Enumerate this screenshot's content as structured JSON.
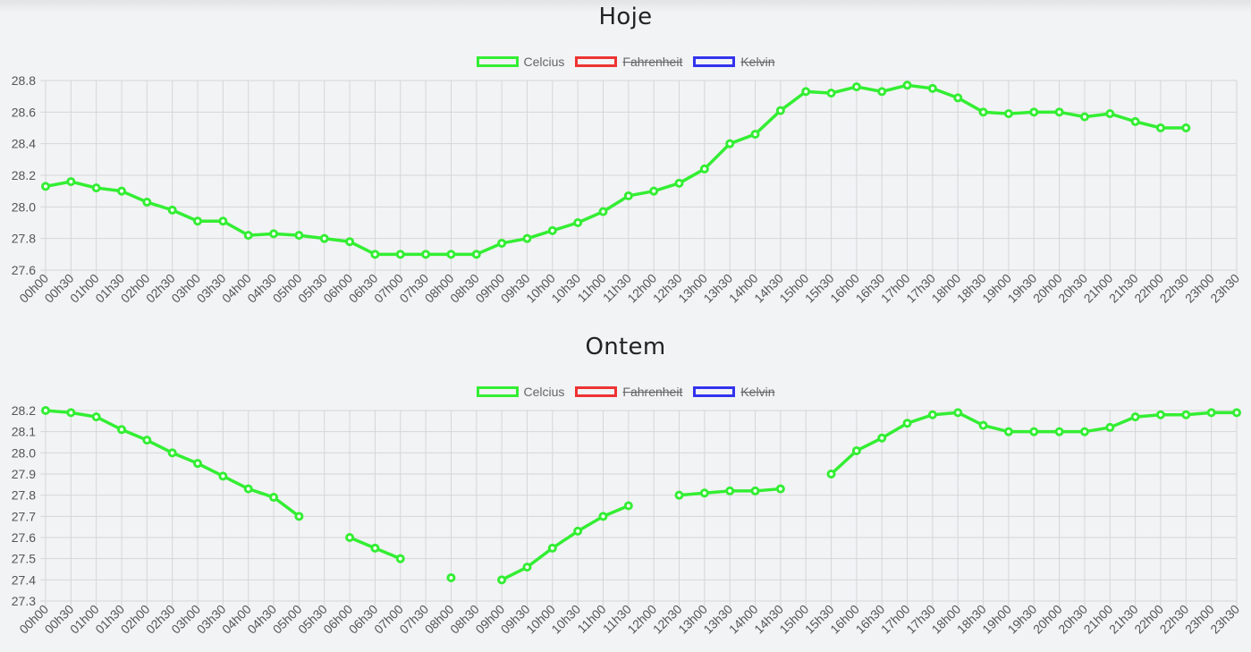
{
  "chart_data": [
    {
      "type": "line",
      "title": "Hoje",
      "legend": [
        {
          "name": "Celcius",
          "color": "#33ee33",
          "hidden": false
        },
        {
          "name": "Fahrenheit",
          "color": "#ee3333",
          "hidden": true
        },
        {
          "name": "Kelvin",
          "color": "#3333ee",
          "hidden": true
        }
      ],
      "categories": [
        "00h00",
        "00h30",
        "01h00",
        "01h30",
        "02h00",
        "02h30",
        "03h00",
        "03h30",
        "04h00",
        "04h30",
        "05h00",
        "05h30",
        "06h00",
        "06h30",
        "07h00",
        "07h30",
        "08h00",
        "08h30",
        "09h00",
        "09h30",
        "10h00",
        "10h30",
        "11h00",
        "11h30",
        "12h00",
        "12h30",
        "13h00",
        "13h30",
        "14h00",
        "14h30",
        "15h00",
        "15h30",
        "16h00",
        "16h30",
        "17h00",
        "17h30",
        "18h00",
        "18h30",
        "19h00",
        "19h30",
        "20h00",
        "20h30",
        "21h00",
        "21h30",
        "22h00",
        "22h30",
        "23h00",
        "23h30"
      ],
      "ylim": [
        27.6,
        28.8
      ],
      "yticks": [
        "27.6",
        "27.8",
        "28.0",
        "28.2",
        "28.4",
        "28.6",
        "28.8"
      ],
      "grid": true,
      "legend_position": "top",
      "series": [
        {
          "name": "Celcius",
          "color": "#33ee33",
          "values": [
            28.13,
            28.16,
            28.12,
            28.1,
            28.03,
            27.98,
            27.91,
            27.91,
            27.82,
            27.83,
            27.82,
            27.8,
            27.78,
            27.7,
            27.7,
            27.7,
            27.7,
            27.7,
            27.77,
            27.8,
            27.85,
            27.9,
            27.97,
            28.07,
            28.1,
            28.15,
            28.24,
            28.4,
            28.46,
            28.61,
            28.73,
            28.72,
            28.76,
            28.73,
            28.77,
            28.75,
            28.69,
            28.6,
            28.59,
            28.6,
            28.6,
            28.57,
            28.59,
            28.54,
            28.5,
            28.5,
            null,
            null
          ]
        }
      ]
    },
    {
      "type": "line",
      "title": "Ontem",
      "legend": [
        {
          "name": "Celcius",
          "color": "#33ee33",
          "hidden": false
        },
        {
          "name": "Fahrenheit",
          "color": "#ee3333",
          "hidden": true
        },
        {
          "name": "Kelvin",
          "color": "#3333ee",
          "hidden": true
        }
      ],
      "categories": [
        "00h00",
        "00h30",
        "01h00",
        "01h30",
        "02h00",
        "02h30",
        "03h00",
        "03h30",
        "04h00",
        "04h30",
        "05h00",
        "05h30",
        "06h00",
        "06h30",
        "07h00",
        "07h30",
        "08h00",
        "08h30",
        "09h00",
        "09h30",
        "10h00",
        "10h30",
        "11h00",
        "11h30",
        "12h00",
        "12h30",
        "13h00",
        "13h30",
        "14h00",
        "14h30",
        "15h00",
        "15h30",
        "16h00",
        "16h30",
        "17h00",
        "17h30",
        "18h00",
        "18h30",
        "19h00",
        "19h30",
        "20h00",
        "20h30",
        "21h00",
        "21h30",
        "22h00",
        "22h30",
        "23h00",
        "23h30"
      ],
      "ylim": [
        27.3,
        28.2
      ],
      "yticks": [
        "27.3",
        "27.4",
        "27.5",
        "27.6",
        "27.7",
        "27.8",
        "27.9",
        "28.0",
        "28.1",
        "28.2"
      ],
      "grid": true,
      "legend_position": "top",
      "series": [
        {
          "name": "Celcius",
          "color": "#33ee33",
          "values": [
            28.2,
            28.19,
            28.17,
            28.11,
            28.06,
            28.0,
            27.95,
            27.89,
            27.83,
            27.79,
            27.7,
            null,
            27.6,
            27.55,
            27.5,
            null,
            27.41,
            null,
            27.4,
            27.46,
            27.55,
            27.63,
            27.7,
            27.75,
            null,
            27.8,
            27.81,
            27.82,
            27.82,
            27.83,
            null,
            27.9,
            28.01,
            28.07,
            28.14,
            28.18,
            28.19,
            28.13,
            28.1,
            28.1,
            28.1,
            28.1,
            28.12,
            28.17,
            28.18,
            28.18,
            28.19,
            28.19
          ]
        }
      ]
    }
  ]
}
